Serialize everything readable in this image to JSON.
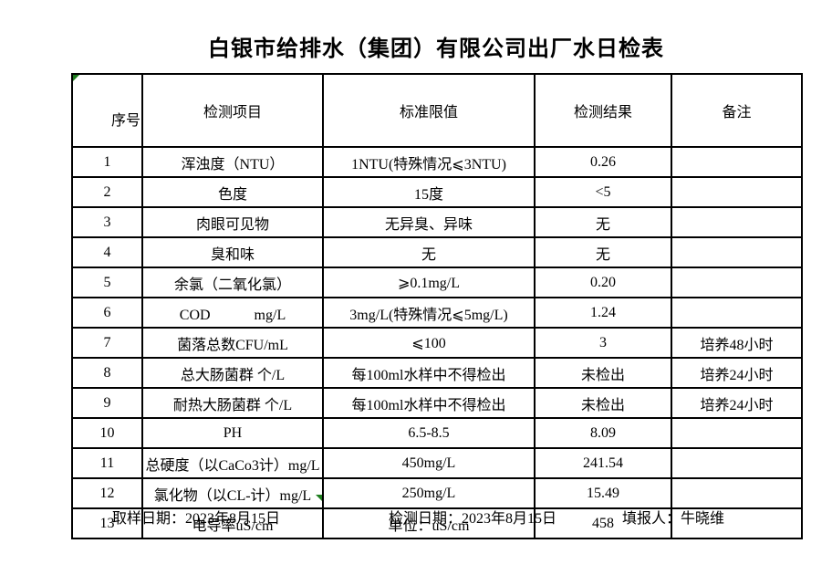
{
  "title": "白银市给排水（集团）有限公司出厂水日检表",
  "table": {
    "headers": [
      "序号",
      "检测项目",
      "标准限值",
      "检测结果",
      "备注"
    ],
    "rows": [
      {
        "no": "1",
        "item": "浑浊度（NTU）",
        "standard": "1NTU(特殊情况⩽3NTU)",
        "result": "0.26",
        "remark": ""
      },
      {
        "no": "2",
        "item": "色度",
        "standard": "15度",
        "result": "<5",
        "remark": ""
      },
      {
        "no": "3",
        "item": "肉眼可见物",
        "standard": "无异臭、异味",
        "result": "无",
        "remark": ""
      },
      {
        "no": "4",
        "item": "臭和味",
        "standard": "无",
        "result": "无",
        "remark": ""
      },
      {
        "no": "5",
        "item": "余氯（二氧化氯）",
        "standard": "⩾0.1mg/L",
        "result": "0.20",
        "remark": ""
      },
      {
        "no": "6",
        "item": "COD　　　mg/L",
        "standard": "3mg/L(特殊情况⩽5mg/L)",
        "result": "1.24",
        "remark": ""
      },
      {
        "no": "7",
        "item": "菌落总数CFU/mL",
        "standard": "⩽100",
        "result": "3",
        "remark": "培养48小时"
      },
      {
        "no": "8",
        "item": "总大肠菌群 个/L",
        "standard": "每100ml水样中不得检出",
        "result": "未检出",
        "remark": "培养24小时"
      },
      {
        "no": "9",
        "item": "耐热大肠菌群 个/L",
        "standard": "每100ml水样中不得检出",
        "result": "未检出",
        "remark": "培养24小时"
      },
      {
        "no": "10",
        "item": "PH",
        "standard": "6.5-8.5",
        "result": "8.09",
        "remark": ""
      },
      {
        "no": "11",
        "item": "总硬度（以CaCo3计）mg/L",
        "standard": "450mg/L",
        "result": "241.54",
        "remark": ""
      },
      {
        "no": "12",
        "item": "氯化物（以CL-计）mg/L",
        "standard": "250mg/L",
        "result": "15.49",
        "remark": ""
      },
      {
        "no": "13",
        "item": "电导率uS/cm",
        "standard": "单位：uS/cm",
        "result": "458",
        "remark": ""
      }
    ]
  },
  "footer": {
    "sampling_date": "取样日期：2023年8月15日",
    "test_date": "检测日期：2023年8月15日",
    "reporter": "填报人：牛晓维"
  },
  "icons": {
    "corner_marker": "green-corner-triangle",
    "handle_marker": "green-handle-triangle"
  },
  "colors": {
    "marker_green": "#1e7d1e",
    "table_border": "#000000",
    "background": "#ffffff",
    "text": "#000000"
  }
}
